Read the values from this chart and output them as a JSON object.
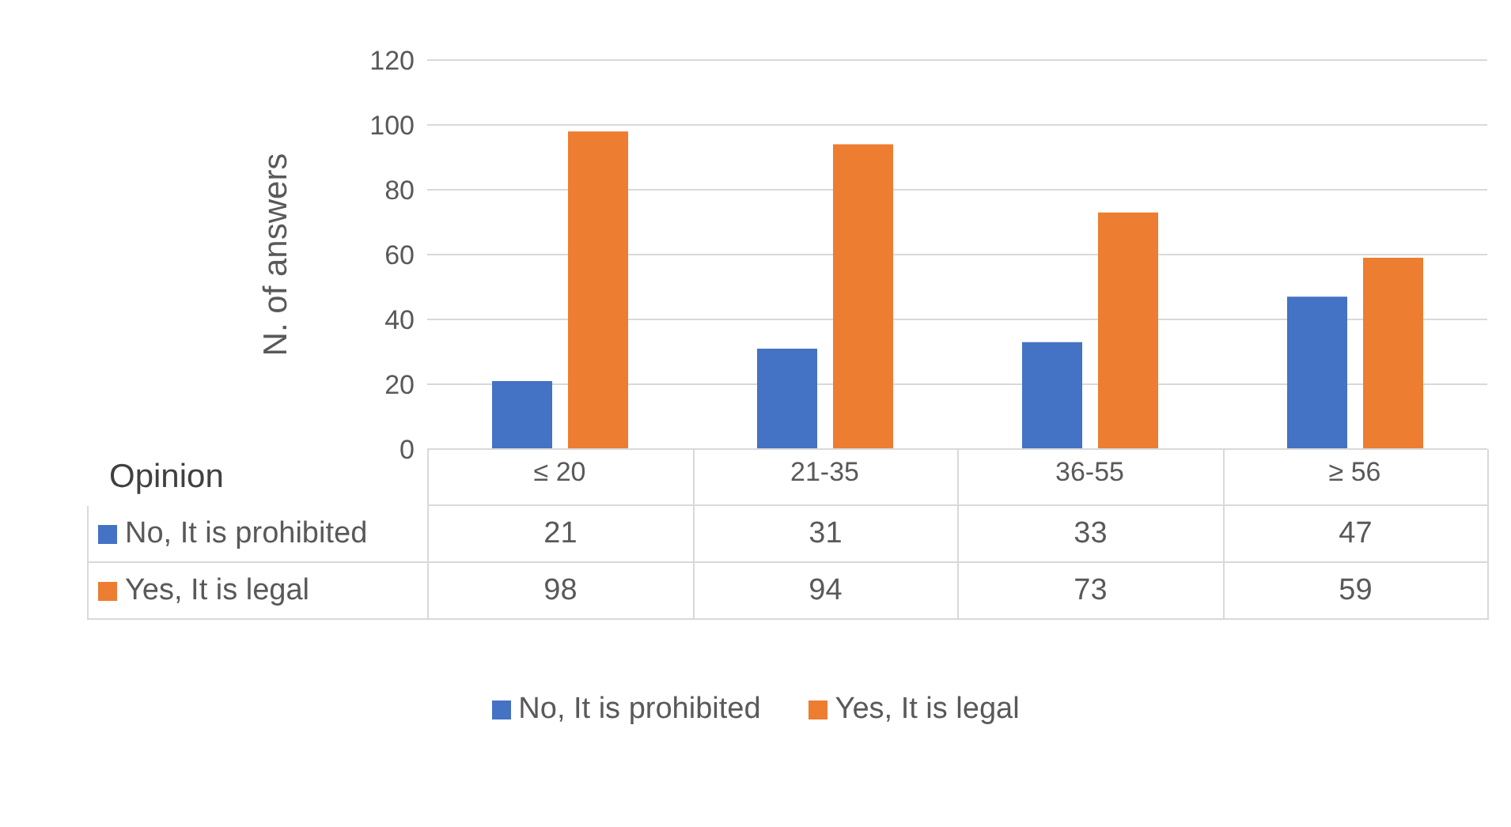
{
  "chart_data": {
    "type": "bar",
    "xlabel": "Opinion",
    "ylabel": "N. of answers",
    "categories": [
      "≤ 20",
      "21-35",
      "36-55",
      "≥ 56"
    ],
    "series": [
      {
        "name": "No, It is prohibited",
        "color": "#4472c4",
        "values": [
          21,
          31,
          33,
          47
        ]
      },
      {
        "name": "Yes, It is legal",
        "color": "#ed7d31",
        "values": [
          98,
          94,
          73,
          59
        ]
      }
    ],
    "ylim": [
      0,
      120
    ],
    "yticks": [
      0,
      20,
      40,
      60,
      80,
      100,
      120
    ],
    "grid": "y",
    "legend": "bottom",
    "data_labels": true
  }
}
